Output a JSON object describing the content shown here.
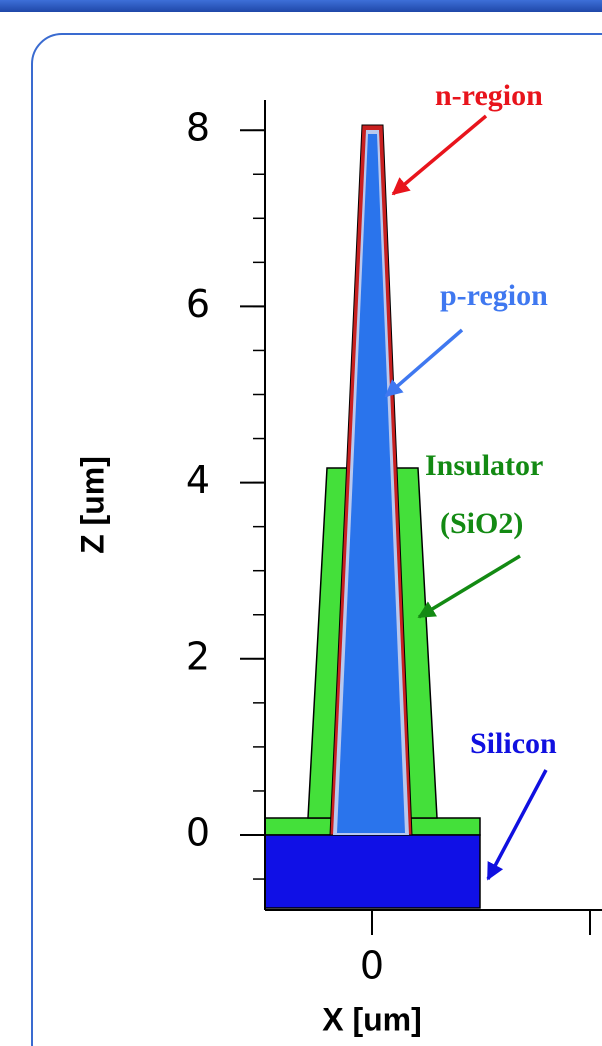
{
  "axes": {
    "y_label": "Z [um]",
    "x_label": "X [um]",
    "y_ticks": [
      0,
      2,
      4,
      6,
      8
    ],
    "x_ticks": [
      0
    ]
  },
  "annotations": {
    "n_region": "n-region",
    "p_region": "p-region",
    "insulator": "Insulator",
    "insulator_material": "(SiO2)",
    "silicon": "Silicon"
  }
}
